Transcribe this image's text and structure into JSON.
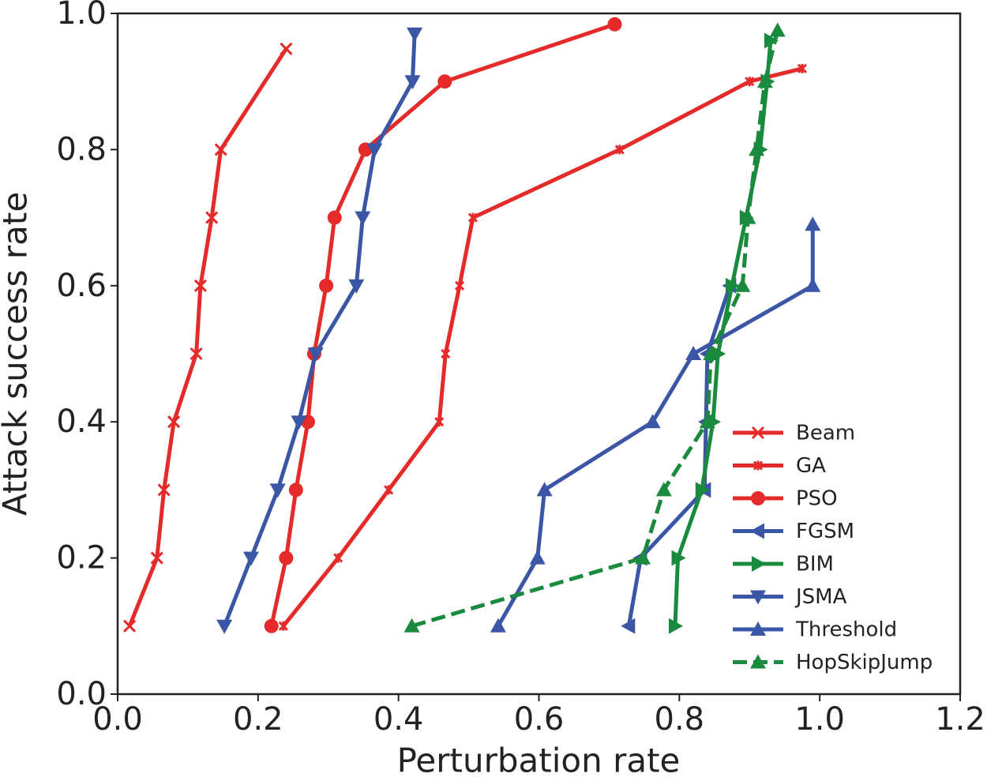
{
  "chart_data": {
    "type": "line",
    "xlabel": "Perturbation rate",
    "ylabel": "Attack success rate",
    "xlim": [
      0,
      1.2
    ],
    "ylim": [
      0,
      1
    ],
    "xticks": [
      {
        "value": 0,
        "label": "0.0"
      },
      0.2,
      0.4,
      0.6,
      0.8,
      {
        "value": 1,
        "label": "1.0"
      },
      1.2
    ],
    "yticks": [
      {
        "value": 0,
        "label": "0.0"
      },
      0.2,
      0.4,
      0.6,
      0.8,
      {
        "value": 1,
        "label": "1.0"
      }
    ],
    "legend": "lower right",
    "series": [
      {
        "name": "Beam",
        "color": "#e52a2a",
        "marker": "x",
        "linestyle": "solid",
        "x": [
          0.017,
          0.056,
          0.066,
          0.08,
          0.112,
          0.118,
          0.134,
          0.147,
          0.24
        ],
        "values": [
          0.1,
          0.2,
          0.3,
          0.4,
          0.5,
          0.6,
          0.7,
          0.8,
          0.948
        ]
      },
      {
        "name": "GA",
        "color": "#e52a2a",
        "marker": "star",
        "linestyle": "solid",
        "x": [
          0.236,
          0.314,
          0.386,
          0.458,
          0.467,
          0.487,
          0.506,
          0.715,
          0.9,
          0.975
        ],
        "values": [
          0.1,
          0.2,
          0.3,
          0.4,
          0.5,
          0.6,
          0.7,
          0.8,
          0.9,
          0.919
        ]
      },
      {
        "name": "PSO",
        "color": "#e52a2a",
        "marker": "o",
        "linestyle": "solid",
        "x": [
          0.219,
          0.24,
          0.254,
          0.271,
          0.28,
          0.297,
          0.309,
          0.353,
          0.466,
          0.708
        ],
        "values": [
          0.1,
          0.2,
          0.3,
          0.4,
          0.5,
          0.6,
          0.7,
          0.8,
          0.9,
          0.984
        ]
      },
      {
        "name": "FGSM",
        "color": "#3a56a5",
        "marker": "<",
        "linestyle": "solid",
        "x": [
          0.728,
          0.745,
          0.836,
          0.838,
          0.84,
          0.872
        ],
        "values": [
          0.1,
          0.2,
          0.3,
          0.4,
          0.5,
          0.6
        ]
      },
      {
        "name": "BIM",
        "color": "#1a8a3e",
        "marker": ">",
        "linestyle": "solid",
        "x": [
          0.794,
          0.798,
          0.832,
          0.848,
          0.855,
          0.875,
          0.895,
          0.915,
          0.925,
          0.93
        ],
        "values": [
          0.1,
          0.2,
          0.3,
          0.4,
          0.5,
          0.6,
          0.7,
          0.8,
          0.9,
          0.96
        ]
      },
      {
        "name": "JSMA",
        "color": "#3a56a5",
        "marker": "v",
        "linestyle": "solid",
        "x": [
          0.152,
          0.19,
          0.228,
          0.258,
          0.282,
          0.34,
          0.349,
          0.366,
          0.42,
          0.423
        ],
        "values": [
          0.1,
          0.2,
          0.3,
          0.4,
          0.5,
          0.6,
          0.7,
          0.8,
          0.9,
          0.97
        ]
      },
      {
        "name": "Threshold",
        "color": "#3a56a5",
        "marker": "^",
        "linestyle": "solid",
        "x": [
          0.542,
          0.598,
          0.608,
          0.762,
          0.82,
          0.99,
          0.99
        ],
        "values": [
          0.1,
          0.2,
          0.3,
          0.4,
          0.5,
          0.6,
          0.69
        ]
      },
      {
        "name": "HopSkipJump",
        "color": "#1a8a3e",
        "marker": "^",
        "linestyle": "dashed",
        "x": [
          0.419,
          0.748,
          0.778,
          0.84,
          0.845,
          0.89,
          0.898,
          0.91,
          0.922,
          0.94
        ],
        "values": [
          0.1,
          0.2,
          0.3,
          0.4,
          0.5,
          0.6,
          0.7,
          0.8,
          0.9,
          0.975
        ]
      }
    ]
  }
}
